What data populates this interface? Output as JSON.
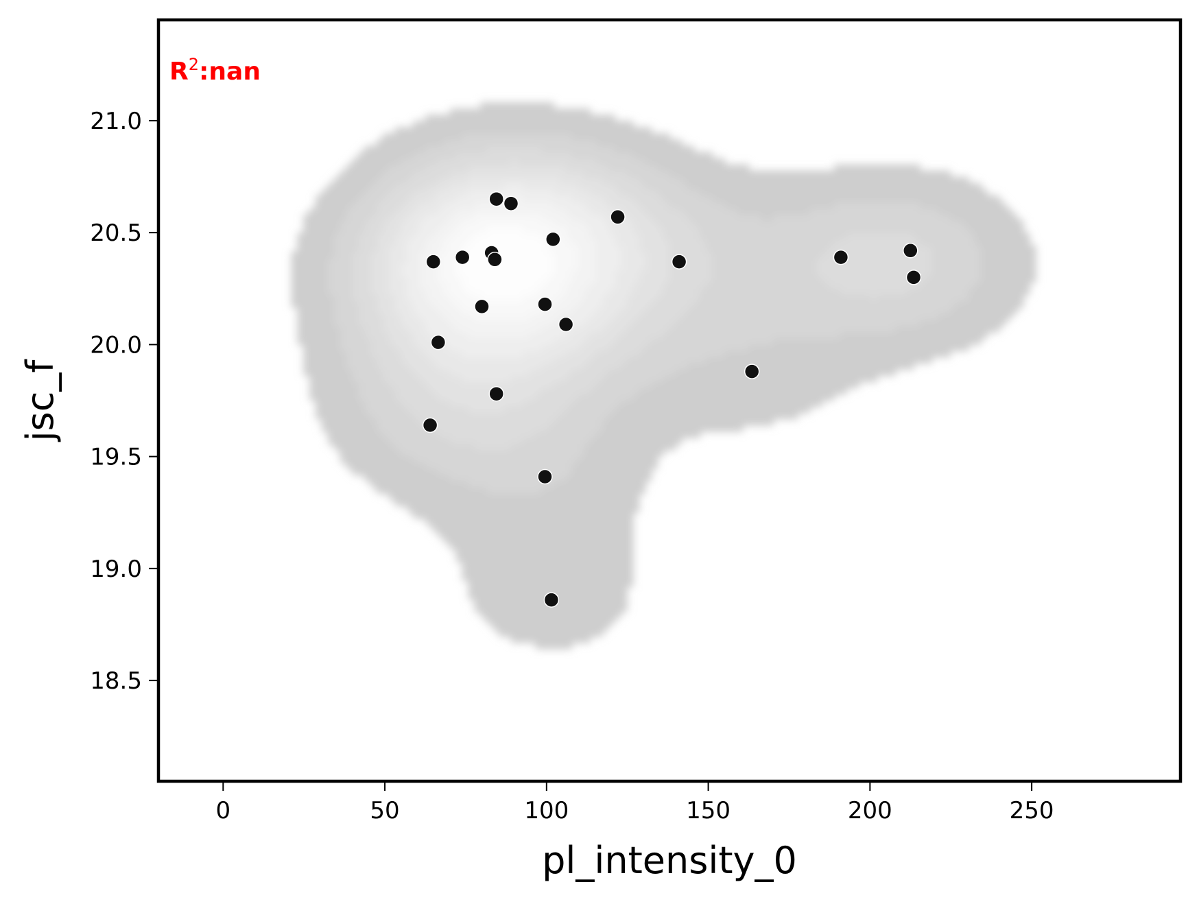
{
  "chart_data": {
    "type": "scatter",
    "title": "",
    "xlabel": "pl_intensity_0",
    "ylabel": "jsc_f",
    "xlim": [
      -20,
      296
    ],
    "ylim": [
      18.05,
      21.45
    ],
    "x_ticks": [
      0,
      50,
      100,
      150,
      200,
      250
    ],
    "x_tick_labels": [
      "0",
      "50",
      "100",
      "150",
      "200",
      "250"
    ],
    "y_ticks": [
      18.5,
      19.0,
      19.5,
      20.0,
      20.5,
      21.0
    ],
    "y_tick_labels": [
      "18.5",
      "19.0",
      "19.5",
      "20.0",
      "20.5",
      "21.0"
    ],
    "grid": false,
    "annotation": {
      "prefix": "R",
      "sup": "2",
      "text": ":nan",
      "color": "#ff0000",
      "placement": "top-left"
    },
    "density_background": "kde contours, grey (#cecece) to white",
    "point_color": "#111111",
    "points": [
      {
        "x": 84.5,
        "y": 20.65
      },
      {
        "x": 89,
        "y": 20.63
      },
      {
        "x": 122,
        "y": 20.57
      },
      {
        "x": 102,
        "y": 20.47
      },
      {
        "x": 83,
        "y": 20.41
      },
      {
        "x": 84,
        "y": 20.38
      },
      {
        "x": 74,
        "y": 20.39
      },
      {
        "x": 65,
        "y": 20.37
      },
      {
        "x": 141,
        "y": 20.37
      },
      {
        "x": 80,
        "y": 20.17
      },
      {
        "x": 99.5,
        "y": 20.18
      },
      {
        "x": 106,
        "y": 20.09
      },
      {
        "x": 66.5,
        "y": 20.01
      },
      {
        "x": 84.5,
        "y": 19.78
      },
      {
        "x": 64,
        "y": 19.64
      },
      {
        "x": 99.5,
        "y": 19.41
      },
      {
        "x": 101.5,
        "y": 18.86
      },
      {
        "x": 163.5,
        "y": 19.88
      },
      {
        "x": 191,
        "y": 20.39
      },
      {
        "x": 212.5,
        "y": 20.42
      },
      {
        "x": 213.5,
        "y": 20.3
      }
    ]
  }
}
